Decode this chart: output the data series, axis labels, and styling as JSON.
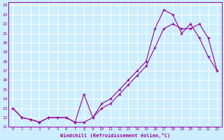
{
  "xlabel": "Windchill (Refroidissement éolien,°C)",
  "bg_color": "#cceeff",
  "line_color": "#990099",
  "grid_color": "#ffffff",
  "xlim": [
    -0.5,
    23.5
  ],
  "ylim": [
    11,
    24.3
  ],
  "xticks": [
    0,
    1,
    2,
    3,
    4,
    5,
    6,
    7,
    8,
    9,
    10,
    11,
    12,
    13,
    14,
    15,
    16,
    17,
    18,
    19,
    20,
    21,
    22,
    23
  ],
  "yticks": [
    11,
    12,
    13,
    14,
    15,
    16,
    17,
    18,
    19,
    20,
    21,
    22,
    23,
    24
  ],
  "line1_x": [
    0,
    1,
    2,
    3,
    4,
    5,
    6,
    7,
    8,
    9,
    10,
    11,
    12,
    13,
    14,
    15,
    16,
    17,
    18,
    19,
    20,
    21,
    22,
    23
  ],
  "line1_y": [
    13,
    12,
    11.8,
    11.5,
    12,
    12,
    12,
    11.5,
    14.5,
    12,
    13.5,
    14.0,
    15.0,
    16.0,
    17.0,
    18.0,
    21.5,
    23.5,
    23.0,
    21.0,
    22.0,
    20.5,
    18.5,
    17.0
  ],
  "line2_x": [
    0,
    1,
    2,
    3,
    4,
    5,
    6,
    7,
    8,
    9,
    10,
    11,
    12,
    13,
    14,
    15,
    16,
    17,
    18,
    19,
    20,
    21,
    22,
    23
  ],
  "line2_y": [
    13,
    12,
    11.8,
    11.5,
    12,
    12,
    12,
    11.5,
    11.5,
    12,
    13.0,
    13.5,
    14.5,
    15.5,
    16.5,
    17.5,
    19.5,
    21.5,
    22.0,
    21.5,
    21.5,
    22.0,
    20.5,
    17.0
  ]
}
